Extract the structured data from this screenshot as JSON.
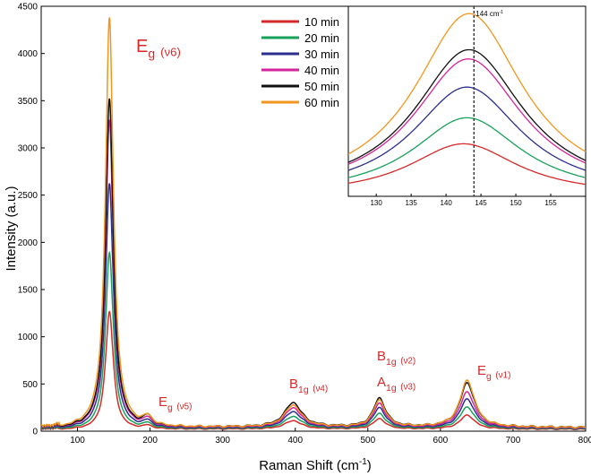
{
  "chart_data": {
    "type": "line",
    "xlabel": "Raman Shift (cm",
    "xlabel_sup": "-1",
    "xlabel_close": ")",
    "ylabel": "Intensity (a.u.)",
    "xlim": [
      50,
      800
    ],
    "ylim": [
      0,
      4500
    ],
    "xticks": [
      100,
      200,
      300,
      400,
      500,
      600,
      700,
      800
    ],
    "yticks": [
      0,
      500,
      1000,
      1500,
      2000,
      2500,
      3000,
      3500,
      4000,
      4500
    ],
    "series": [
      {
        "name": "10 min",
        "color": "#d42a2a",
        "peaks": [
          1250,
          35,
          90,
          110,
          150
        ],
        "base": 20
      },
      {
        "name": "20 min",
        "color": "#19a05a",
        "peaks": [
          1870,
          50,
          130,
          160,
          230
        ],
        "base": 25
      },
      {
        "name": "30 min",
        "color": "#2b2e8c",
        "peaks": [
          2600,
          65,
          175,
          215,
          310
        ],
        "base": 30
      },
      {
        "name": "40 min",
        "color": "#d4259c",
        "peaks": [
          3270,
          80,
          210,
          255,
          380
        ],
        "base": 35
      },
      {
        "name": "50 min",
        "color": "#111111",
        "peaks": [
          3490,
          100,
          260,
          305,
          470
        ],
        "base": 40
      },
      {
        "name": "60 min",
        "color": "#f0961e",
        "peaks": [
          4350,
          90,
          235,
          285,
          500
        ],
        "base": 38
      }
    ],
    "peak_positions": [
      144,
      197,
      397,
      516,
      637
    ],
    "annotations": [
      {
        "main": "E",
        "sub": "g",
        "mode": "(ν6)"
      },
      {
        "main": "E",
        "sub": "g",
        "mode": "(ν5)"
      },
      {
        "main": "B",
        "sub": "1g",
        "mode": "(ν4)"
      },
      {
        "main": "B",
        "sub": "1g",
        "mode": "(ν2)"
      },
      {
        "main": "A",
        "sub": "1g",
        "mode": "(ν3)"
      },
      {
        "main": "E",
        "sub": "g",
        "mode": "(ν1)"
      }
    ],
    "inset": {
      "xlim": [
        126,
        160
      ],
      "xticks": [
        130,
        135,
        140,
        145,
        150,
        155
      ],
      "marker_x": 144,
      "marker_label": "144 cm",
      "marker_sup": "-1",
      "peak_x": [
        142.5,
        143.0,
        143.0,
        143.2,
        143.3,
        143.3
      ]
    }
  }
}
